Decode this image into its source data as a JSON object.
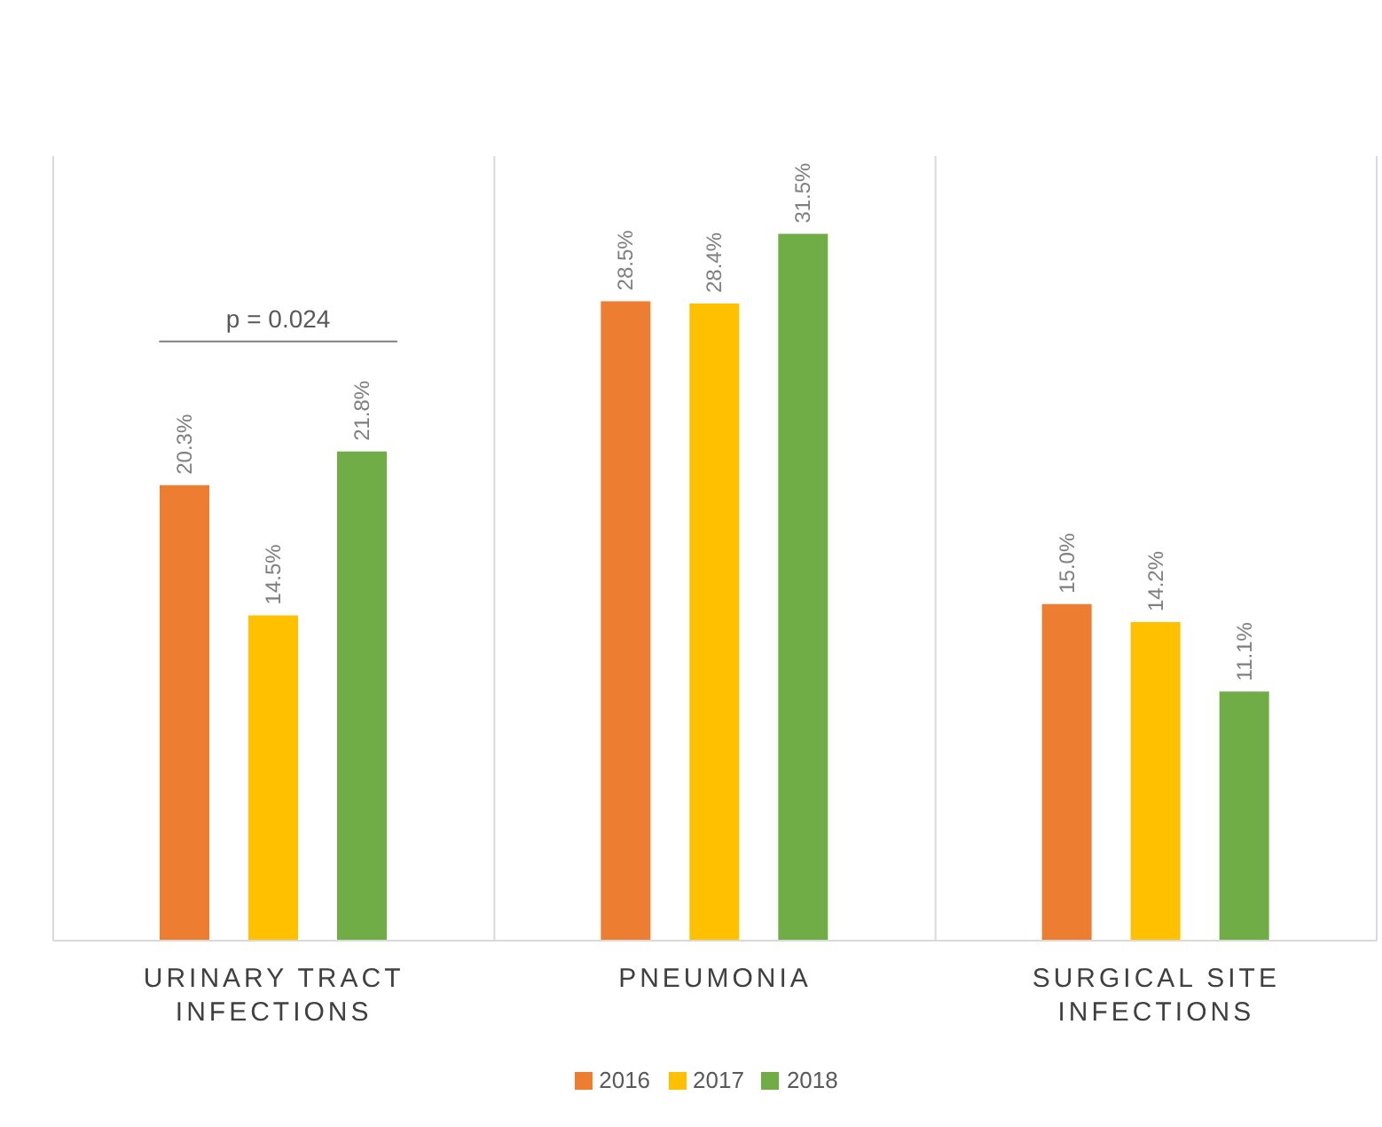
{
  "chart_data": {
    "type": "bar",
    "categories": [
      "URINARY TRACT INFECTIONS",
      "PNEUMONIA",
      "SURGICAL SITE INFECTIONS"
    ],
    "series": [
      {
        "name": "2016",
        "color": "#ed7d31",
        "values": [
          20.3,
          28.5,
          15.0
        ],
        "value_labels": [
          "20.3%",
          "28.5%",
          "15.0%"
        ]
      },
      {
        "name": "2017",
        "color": "#ffc000",
        "values": [
          14.5,
          28.4,
          14.2
        ],
        "value_labels": [
          "14.5%",
          "28.4%",
          "14.2%"
        ]
      },
      {
        "name": "2018",
        "color": "#70ad47",
        "values": [
          21.8,
          31.5,
          11.1
        ],
        "value_labels": [
          "21.8%",
          "31.5%",
          "11.1%"
        ]
      }
    ],
    "annotations": [
      "p = 0.024"
    ],
    "grid": "x",
    "legend": "bottom"
  }
}
